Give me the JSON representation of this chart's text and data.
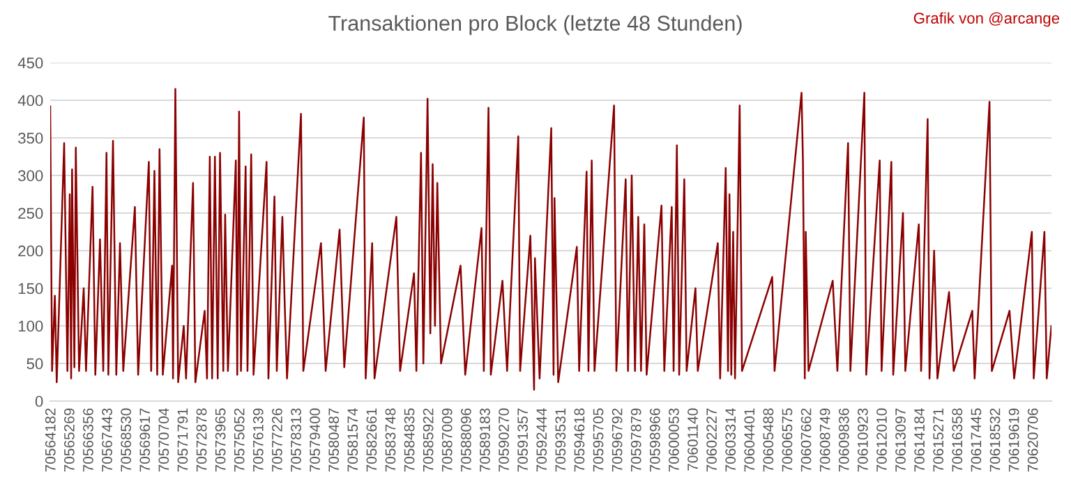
{
  "chart_data": {
    "type": "line",
    "title": "Transaktionen pro Block (letzte 48 Stunden)",
    "annotations": [
      "Grafik von @arcange"
    ],
    "series": [
      {
        "color": "#8b0000",
        "x": [
          70564100,
          70564207,
          70564368,
          70564475,
          70564903,
          70565091,
          70565225,
          70565305,
          70565358,
          70565492,
          70565573,
          70565760,
          70566028,
          70566161,
          70566536,
          70566697,
          70566965,
          70567152,
          70567339,
          70567446,
          70567714,
          70567902,
          70568116,
          70568303,
          70568972,
          70569160,
          70569775,
          70569909,
          70570097,
          70570257,
          70570391,
          70570579,
          70571114,
          70571167,
          70571301,
          70571462,
          70571783,
          70571917,
          70572319,
          70572452,
          70572988,
          70573122,
          70573282,
          70573416,
          70573577,
          70573737,
          70573871,
          70574059,
          70574166,
          70574326,
          70574781,
          70574862,
          70574969,
          70575076,
          70575344,
          70575451,
          70575665,
          70575799,
          70576548,
          70576655,
          70577003,
          70577137,
          70577458,
          70577592,
          70577726,
          70578529,
          70578663,
          70579680,
          70579948,
          70580751,
          70581019,
          70582143,
          70582250,
          70582625,
          70582759,
          70584017,
          70584231,
          70585034,
          70585168,
          70585436,
          70585570,
          70585757,
          70585811,
          70585971,
          70586105,
          70586239,
          70586373,
          70586587,
          70587711,
          70587979,
          70588916,
          70589050,
          70589318,
          70589451,
          70590121,
          70590388,
          70591031,
          70591138,
          70591727,
          70591941,
          70591991,
          70592258,
          70592928,
          70593062,
          70593115,
          70593329,
          70594400,
          70594534,
          70594962,
          70595069,
          70595257,
          70595417,
          70596542,
          70596675,
          70597211,
          70597345,
          70597559,
          70597746,
          70597934,
          70598094,
          70598282,
          70598416,
          70599272,
          70599433,
          70599861,
          70599968,
          70600156,
          70600289,
          70600584,
          70600718,
          70601226,
          70601360,
          70602511,
          70602645,
          70602966,
          70603100,
          70603181,
          70603288,
          70603395,
          70603502,
          70603770,
          70603903,
          70605643,
          70605777,
          70607330,
          70607410,
          70607517,
          70607571,
          70607731,
          70609123,
          70609391,
          70610007,
          70610141,
          70610944,
          70611051,
          70611827,
          70611934,
          70612497,
          70612604,
          70613166,
          70613300,
          70614076,
          70614210,
          70614585,
          70614692,
          70614959,
          70615147,
          70615816,
          70616084,
          70617155,
          70617288,
          70618145,
          70618279,
          70619296,
          70619564,
          70620581,
          70620688,
          70621304,
          70621438,
          70621705
        ],
        "values": [
          392,
          40,
          140,
          25,
          343,
          40,
          275,
          30,
          308,
          45,
          337,
          40,
          150,
          40,
          285,
          35,
          215,
          40,
          330,
          35,
          346,
          35,
          210,
          40,
          258,
          35,
          318,
          40,
          306,
          35,
          335,
          35,
          180,
          30,
          415,
          25,
          100,
          30,
          290,
          25,
          120,
          30,
          325,
          30,
          325,
          30,
          330,
          40,
          248,
          40,
          320,
          35,
          385,
          40,
          312,
          40,
          328,
          35,
          318,
          30,
          272,
          40,
          245,
          130,
          30,
          382,
          40,
          210,
          40,
          228,
          45,
          377,
          30,
          210,
          30,
          245,
          40,
          170,
          40,
          330,
          50,
          320,
          402,
          90,
          315,
          100,
          290,
          50,
          180,
          35,
          230,
          40,
          390,
          35,
          160,
          40,
          352,
          40,
          220,
          15,
          190,
          30,
          363,
          35,
          270,
          25,
          205,
          40,
          305,
          40,
          320,
          40,
          393,
          40,
          295,
          40,
          300,
          40,
          245,
          40,
          235,
          35,
          260,
          40,
          258,
          40,
          340,
          35,
          295,
          40,
          150,
          40,
          210,
          30,
          310,
          40,
          275,
          35,
          225,
          30,
          393,
          40,
          165,
          40,
          410,
          320,
          30,
          225,
          40,
          160,
          40,
          343,
          40,
          410,
          35,
          320,
          40,
          318,
          35,
          250,
          40,
          235,
          40,
          375,
          30,
          200,
          30,
          145,
          40,
          120,
          30,
          398,
          40,
          120,
          30,
          225,
          30,
          225,
          30,
          100
        ]
      }
    ],
    "xlim": [
      70564100,
      70621710
    ],
    "xticks": [
      70564182,
      70565269,
      70566356,
      70567443,
      70568530,
      70569617,
      70570704,
      70571791,
      70572878,
      70573965,
      70575052,
      70576139,
      70577226,
      70578313,
      70579400,
      70580487,
      70581574,
      70582661,
      70583748,
      70584835,
      70585922,
      70587009,
      70588096,
      70589183,
      70590270,
      70591357,
      70592444,
      70593531,
      70594618,
      70595705,
      70596792,
      70597879,
      70598966,
      70600053,
      70601140,
      70602227,
      70603314,
      70604401,
      70605488,
      70606575,
      70607662,
      70608749,
      70609836,
      70610923,
      70612010,
      70613097,
      70614184,
      70615271,
      70616358,
      70617445,
      70618532,
      70619619,
      70620706
    ],
    "ylim": [
      0,
      450
    ],
    "yticks": [
      0,
      50,
      100,
      150,
      200,
      250,
      300,
      350,
      400,
      450
    ],
    "grid": "y",
    "marker": "none",
    "line_style": "solid"
  }
}
